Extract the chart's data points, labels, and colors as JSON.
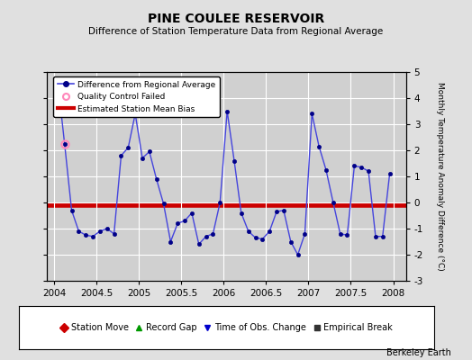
{
  "title": "PINE COULEE RESERVOIR",
  "subtitle": "Difference of Station Temperature Data from Regional Average",
  "ylabel_right": "Monthly Temperature Anomaly Difference (°C)",
  "credit": "Berkeley Earth",
  "xlim": [
    2003.92,
    2008.15
  ],
  "ylim": [
    -3,
    5
  ],
  "yticks": [
    -3,
    -2,
    -1,
    0,
    1,
    2,
    3,
    4,
    5
  ],
  "xticks": [
    2004,
    2004.5,
    2005,
    2005.5,
    2006,
    2006.5,
    2007,
    2007.5,
    2008
  ],
  "xtick_labels": [
    "2004",
    "2004.5",
    "2005",
    "2005.5",
    "2006",
    "2006.5",
    "2007",
    "2007.5",
    "2008"
  ],
  "bias_value": -0.1,
  "background_color": "#e0e0e0",
  "plot_bg_color": "#d0d0d0",
  "line_color": "#4444dd",
  "marker_color": "#000088",
  "bias_color": "#cc0000",
  "qc_fail_color": "#ff88bb",
  "data_x": [
    2004.042,
    2004.125,
    2004.208,
    2004.292,
    2004.375,
    2004.458,
    2004.542,
    2004.625,
    2004.708,
    2004.792,
    2004.875,
    2004.958,
    2005.042,
    2005.125,
    2005.208,
    2005.292,
    2005.375,
    2005.458,
    2005.542,
    2005.625,
    2005.708,
    2005.792,
    2005.875,
    2005.958,
    2006.042,
    2006.125,
    2006.208,
    2006.292,
    2006.375,
    2006.458,
    2006.542,
    2006.625,
    2006.708,
    2006.792,
    2006.875,
    2006.958,
    2007.042,
    2007.125,
    2007.208,
    2007.292,
    2007.375,
    2007.458,
    2007.542,
    2007.625,
    2007.708,
    2007.792,
    2007.875,
    2007.958
  ],
  "data_y": [
    4.7,
    2.25,
    -0.3,
    -1.1,
    -1.25,
    -1.3,
    -1.1,
    -1.0,
    -1.2,
    1.8,
    2.1,
    3.4,
    1.7,
    1.95,
    0.9,
    -0.05,
    -1.5,
    -0.8,
    -0.7,
    -0.4,
    -1.6,
    -1.3,
    -1.2,
    0.0,
    3.5,
    1.6,
    -0.4,
    -1.1,
    -1.35,
    -1.4,
    -1.1,
    -0.35,
    -0.3,
    -1.5,
    -2.0,
    -1.2,
    3.4,
    2.15,
    1.25,
    0.0,
    -1.2,
    -1.25,
    1.4,
    1.35,
    1.2,
    -1.3,
    -1.3,
    1.1
  ],
  "qc_fail_x": [
    2004.125
  ],
  "qc_fail_y": [
    2.25
  ],
  "bottom_legend": [
    {
      "label": "Station Move",
      "marker": "D",
      "color": "#cc0000"
    },
    {
      "label": "Record Gap",
      "marker": "^",
      "color": "#009900"
    },
    {
      "label": "Time of Obs. Change",
      "marker": "v",
      "color": "#0000cc"
    },
    {
      "label": "Empirical Break",
      "marker": "s",
      "color": "#333333"
    }
  ]
}
